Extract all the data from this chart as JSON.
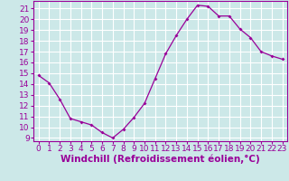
{
  "x": [
    0,
    1,
    2,
    3,
    4,
    5,
    6,
    7,
    8,
    9,
    10,
    11,
    12,
    13,
    14,
    15,
    16,
    17,
    18,
    19,
    20,
    21,
    22,
    23
  ],
  "y": [
    14.8,
    14.1,
    12.6,
    10.8,
    10.5,
    10.2,
    9.5,
    9.0,
    9.8,
    10.9,
    12.2,
    14.5,
    16.8,
    18.5,
    20.0,
    21.3,
    21.2,
    20.3,
    20.3,
    19.1,
    18.3,
    17.0,
    16.6,
    16.3
  ],
  "xlabel": "Windchill (Refroidissement éolien,°C)",
  "ylim_min": 8.7,
  "ylim_max": 21.7,
  "xlim_min": -0.5,
  "xlim_max": 23.5,
  "yticks": [
    9,
    10,
    11,
    12,
    13,
    14,
    15,
    16,
    17,
    18,
    19,
    20,
    21
  ],
  "xticks": [
    0,
    1,
    2,
    3,
    4,
    5,
    6,
    7,
    8,
    9,
    10,
    11,
    12,
    13,
    14,
    15,
    16,
    17,
    18,
    19,
    20,
    21,
    22,
    23
  ],
  "line_color": "#990099",
  "marker_color": "#990099",
  "bg_color": "#cce8e8",
  "grid_color": "#ffffff",
  "label_color": "#990099",
  "tick_fontsize": 6.5,
  "xlabel_fontsize": 7.5
}
